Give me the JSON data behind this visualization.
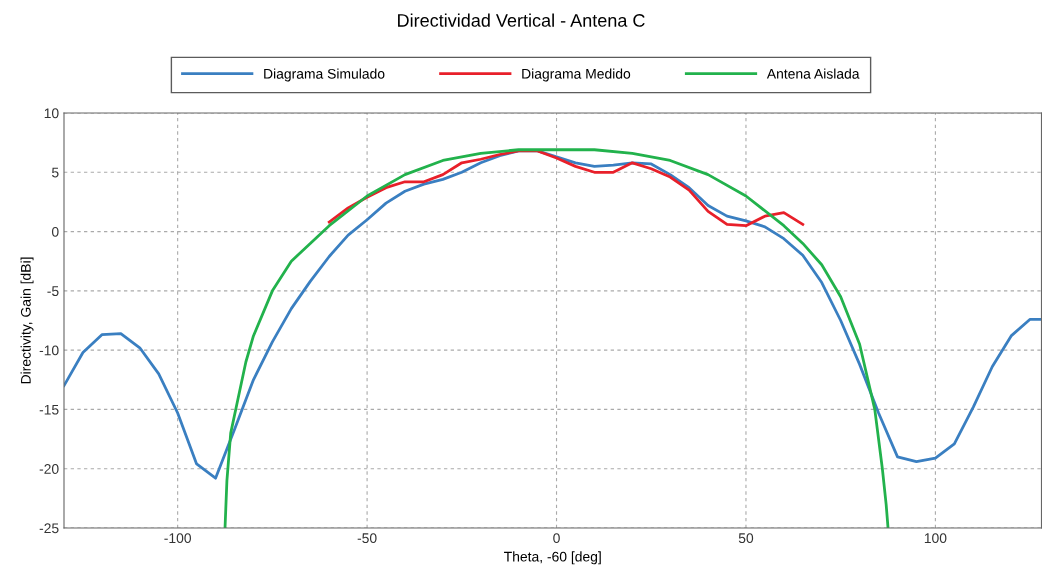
{
  "chart_data": {
    "type": "line",
    "title": "Directividad Vertical - Antena C",
    "xlabel": "Theta, -60 [deg]",
    "ylabel": "Directivity, Gain [dBi]",
    "xlim": [
      -130,
      128
    ],
    "ylim": [
      -25,
      10
    ],
    "xticks": [
      -100,
      -50,
      0,
      50,
      100
    ],
    "yticks": [
      -25,
      -20,
      -15,
      -10,
      -5,
      0,
      5,
      10
    ],
    "grid": true,
    "legend": "top",
    "marker": "none",
    "line_style": "solid",
    "series": [
      {
        "name": "Diagrama Simulado",
        "color": "#3a7fc1",
        "x": [
          -130,
          -125,
          -120,
          -115,
          -110,
          -105,
          -100,
          -95,
          -90,
          -85,
          -80,
          -75,
          -70,
          -65,
          -60,
          -55,
          -50,
          -45,
          -40,
          -35,
          -30,
          -25,
          -20,
          -15,
          -10,
          -5,
          0,
          5,
          10,
          15,
          20,
          25,
          30,
          35,
          40,
          45,
          50,
          55,
          60,
          65,
          70,
          75,
          80,
          85,
          90,
          95,
          100,
          105,
          110,
          115,
          120,
          125,
          128
        ],
        "values": [
          -13,
          -10.2,
          -8.7,
          -8.6,
          -9.8,
          -12,
          -15.3,
          -19.6,
          -20.8,
          -16.7,
          -12.5,
          -9.3,
          -6.5,
          -4.2,
          -2.1,
          -0.3,
          1.0,
          2.4,
          3.4,
          4.0,
          4.4,
          5.0,
          5.8,
          6.4,
          6.8,
          6.8,
          6.3,
          5.8,
          5.5,
          5.6,
          5.8,
          5.7,
          4.8,
          3.7,
          2.2,
          1.3,
          0.9,
          0.4,
          -0.6,
          -2.0,
          -4.3,
          -7.5,
          -11.2,
          -15.3,
          -19.0,
          -19.4,
          -19.1,
          -17.9,
          -14.8,
          -11.4,
          -8.8,
          -7.4,
          -7.4
        ]
      },
      {
        "name": "Diagrama Medido",
        "color": "#e8202a",
        "x": [
          -60,
          -55,
          -50,
          -45,
          -40,
          -35,
          -30,
          -25,
          -20,
          -15,
          -10,
          -5,
          0,
          5,
          10,
          15,
          20,
          25,
          30,
          35,
          40,
          45,
          50,
          55,
          60,
          65
        ],
        "values": [
          0.8,
          2.0,
          2.9,
          3.7,
          4.2,
          4.2,
          4.8,
          5.8,
          6.1,
          6.5,
          6.8,
          6.8,
          6.2,
          5.5,
          5.0,
          5.0,
          5.8,
          5.3,
          4.6,
          3.5,
          1.7,
          0.6,
          0.5,
          1.3,
          1.6,
          0.6
        ]
      },
      {
        "name": "Antena Aislada",
        "color": "#22b24c",
        "x": [
          -87.5,
          -87,
          -86,
          -84,
          -82,
          -80,
          -75,
          -70,
          -65,
          -60,
          -50,
          -40,
          -30,
          -20,
          -10,
          0,
          10,
          20,
          30,
          40,
          50,
          60,
          65,
          70,
          75,
          80,
          84,
          86,
          87,
          87.5
        ],
        "values": [
          -25,
          -21,
          -17,
          -14,
          -11,
          -8.8,
          -5,
          -2.5,
          -1,
          0.5,
          3,
          4.8,
          6,
          6.6,
          6.9,
          6.9,
          6.9,
          6.6,
          6,
          4.8,
          3,
          0.5,
          -1,
          -2.8,
          -5.5,
          -9.5,
          -15,
          -20,
          -23,
          -25
        ]
      }
    ]
  }
}
